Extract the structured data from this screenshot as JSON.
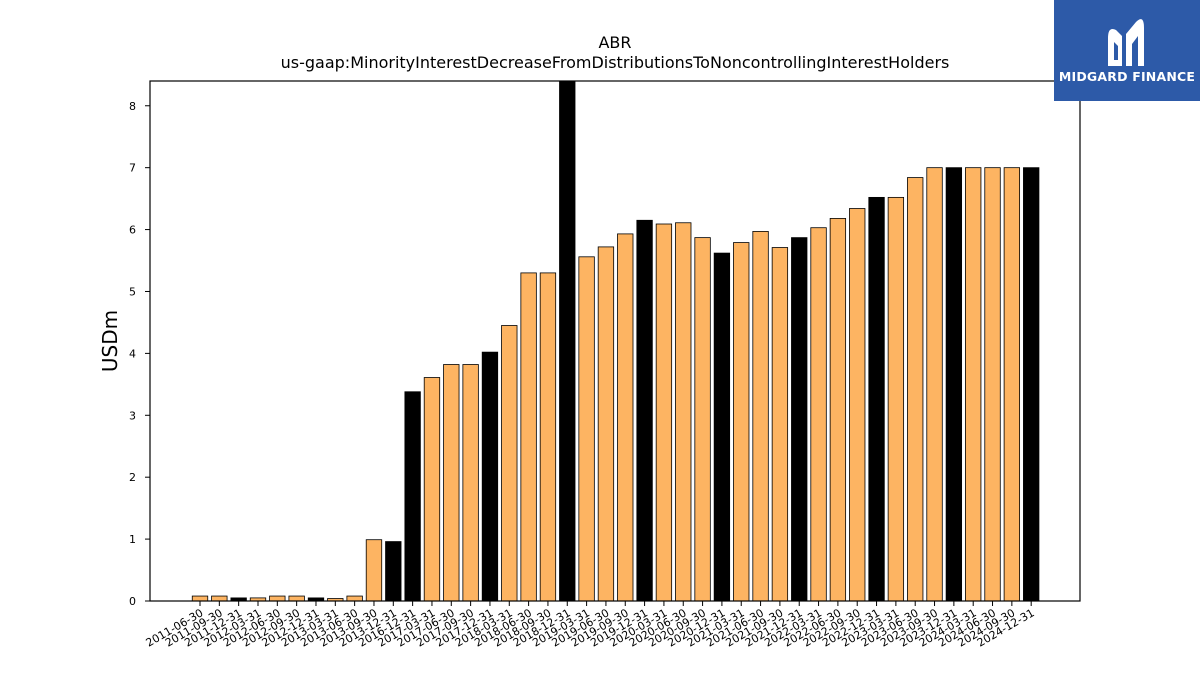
{
  "chart_data": {
    "type": "bar",
    "title": "ABR",
    "subtitle": "us-gaap:MinorityInterestDecreaseFromDistributionsToNoncontrollingInterestHolders",
    "ylabel": "USDm",
    "xlabel": "",
    "ylim": [
      0,
      8.4
    ],
    "yticks": [
      0,
      1,
      2,
      3,
      4,
      5,
      6,
      7,
      8
    ],
    "grid": false,
    "colors": {
      "quarter": "#fdb462",
      "year_end": "#000000",
      "edge": "#000000"
    },
    "categories": [
      "2011-06-30",
      "2011-09-30",
      "2011-12-31",
      "2012-03-31",
      "2012-06-30",
      "2012-09-30",
      "2012-12-31",
      "2013-03-31",
      "2013-06-30",
      "2013-09-30",
      "2013-12-31",
      "2016-12-31",
      "2017-03-31",
      "2017-06-30",
      "2017-09-30",
      "2017-12-31",
      "2018-03-31",
      "2018-06-30",
      "2018-09-30",
      "2018-12-31",
      "2019-03-31",
      "2019-06-30",
      "2019-09-30",
      "2019-12-31",
      "2020-03-31",
      "2020-06-30",
      "2020-09-30",
      "2020-12-31",
      "2021-03-31",
      "2021-06-30",
      "2021-09-30",
      "2021-12-31",
      "2022-03-31",
      "2022-06-30",
      "2022-09-30",
      "2022-12-31",
      "2023-03-31",
      "2023-06-30",
      "2023-09-30",
      "2023-12-31",
      "2024-03-31",
      "2024-06-30",
      "2024-09-30",
      "2024-12-31"
    ],
    "values": [
      0.08,
      0.08,
      0.05,
      0.05,
      0.08,
      0.08,
      0.05,
      0.04,
      0.08,
      0.99,
      0.96,
      3.38,
      3.61,
      3.82,
      3.82,
      4.02,
      4.45,
      5.3,
      5.3,
      8.4,
      5.56,
      5.72,
      5.93,
      6.15,
      6.09,
      6.11,
      5.87,
      5.62,
      5.79,
      5.97,
      5.71,
      5.87,
      6.03,
      6.18,
      6.34,
      6.52,
      6.52,
      6.84,
      7.0,
      7.0,
      7.0,
      7.0,
      7.0,
      7.0
    ],
    "year_end": [
      false,
      false,
      true,
      false,
      false,
      false,
      true,
      false,
      false,
      false,
      true,
      true,
      false,
      false,
      false,
      true,
      false,
      false,
      false,
      true,
      false,
      false,
      false,
      true,
      false,
      false,
      false,
      true,
      false,
      false,
      false,
      true,
      false,
      false,
      false,
      true,
      false,
      false,
      false,
      true,
      false,
      false,
      false,
      true
    ]
  },
  "logo": {
    "text": "MIDGARD FINANCE",
    "icon": "midgard-m-logo-icon"
  }
}
